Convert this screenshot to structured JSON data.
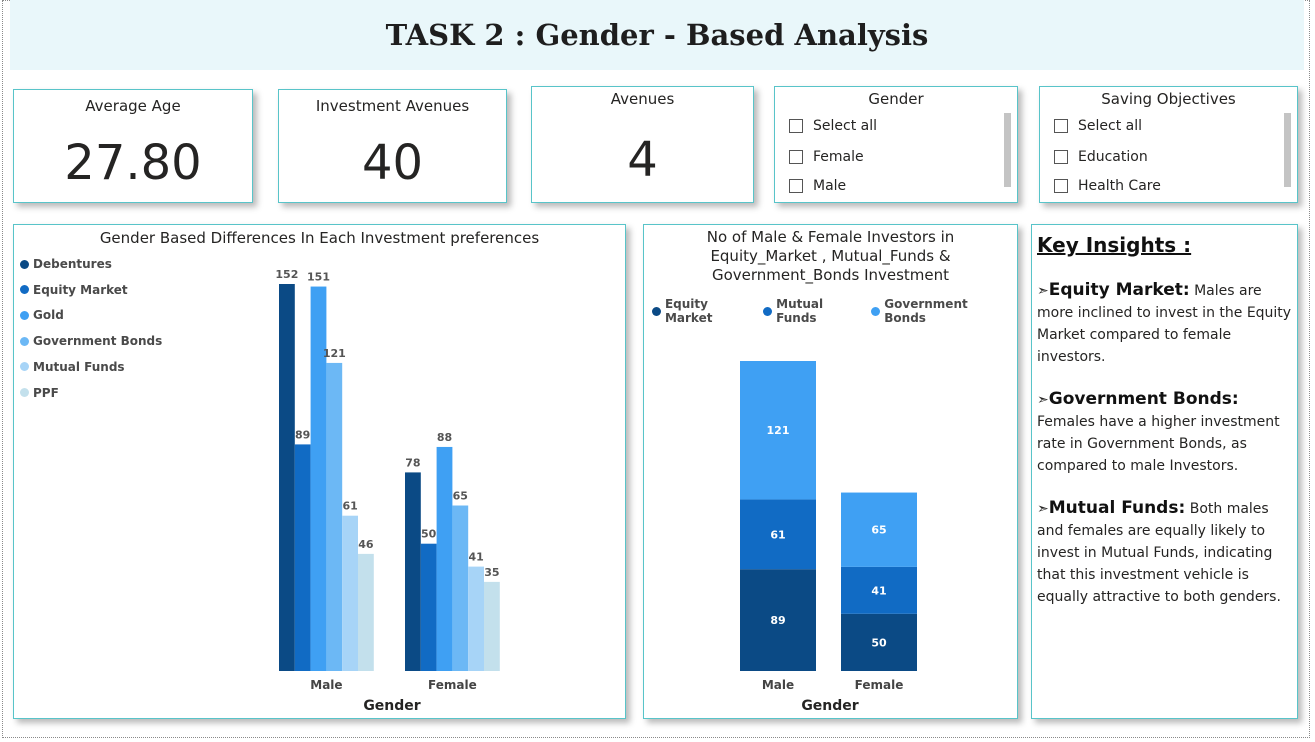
{
  "header": {
    "title": "TASK 2 : Gender - Based Analysis"
  },
  "kpis": [
    {
      "label": "Average Age",
      "value": "27.80"
    },
    {
      "label": "Investment Avenues",
      "value": "40"
    },
    {
      "label": "Avenues",
      "value": "4"
    }
  ],
  "slicers": {
    "gender": {
      "title": "Gender",
      "items": [
        "Select all",
        "Female",
        "Male"
      ]
    },
    "saving": {
      "title": "Saving Objectives",
      "items": [
        "Select all",
        "Education",
        "Health Care"
      ]
    }
  },
  "insights": {
    "heading": "Key Insights :",
    "bullet": "➣",
    "items": [
      {
        "title": "Equity Market:",
        "text": " Males are more inclined to invest in the Equity Market compared to female investors."
      },
      {
        "title": "Government Bonds:",
        "text": " Females have a higher investment rate in Government Bonds, as compared to male Investors."
      },
      {
        "title": "Mutual Funds:",
        "text": " Both males and females are equally likely to invest in Mutual Funds, indicating that this investment vehicle is equally attractive to both genders."
      }
    ]
  },
  "chart_data": [
    {
      "type": "bar",
      "title": "Gender Based Differences In Each Investment preferences",
      "xlabel": "Gender",
      "ylabel": "",
      "categories": [
        "Male",
        "Female"
      ],
      "legend_position": "left",
      "series": [
        {
          "name": "Debentures",
          "values": [
            152,
            78
          ],
          "color": "#0b4a85"
        },
        {
          "name": "Equity Market",
          "values": [
            89,
            50
          ],
          "color": "#116bc4"
        },
        {
          "name": "Gold",
          "values": [
            151,
            88
          ],
          "color": "#3fa0f3"
        },
        {
          "name": "Government Bonds",
          "values": [
            121,
            65
          ],
          "color": "#6cb8f5"
        },
        {
          "name": "Mutual Funds",
          "values": [
            61,
            41
          ],
          "color": "#a7d4f7"
        },
        {
          "name": "PPF",
          "values": [
            46,
            35
          ],
          "color": "#c3e0ec"
        }
      ],
      "ylim": [
        0,
        152
      ]
    },
    {
      "type": "bar",
      "stacked": true,
      "title": "No of Male & Female Investors in Equity_Market , Mutual_Funds & Government_Bonds Investment",
      "xlabel": "Gender",
      "ylabel": "",
      "categories": [
        "Male",
        "Female"
      ],
      "legend_position": "top",
      "legend": [
        {
          "name": "Equity Market",
          "color": "#0b4a85"
        },
        {
          "name": "Mutual Funds",
          "color": "#116bc4"
        },
        {
          "name": "Government Bonds",
          "color": "#3fa0f3"
        }
      ],
      "segments": [
        {
          "values": [
            89,
            50
          ],
          "color": "#0b4a85"
        },
        {
          "values": [
            61,
            41
          ],
          "color": "#116bc4"
        },
        {
          "values": [
            121,
            65
          ],
          "color": "#3fa0f3"
        }
      ]
    }
  ]
}
